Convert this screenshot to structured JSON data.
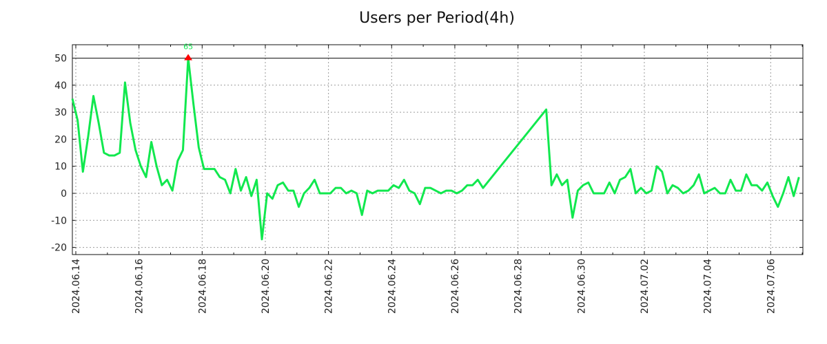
{
  "chart_data": {
    "type": "line",
    "title": "Users per Period(4h)",
    "xlabel": "",
    "ylabel": "",
    "ylim": [
      -22,
      55
    ],
    "yticks": [
      -20,
      -10,
      0,
      10,
      20,
      30,
      40,
      50
    ],
    "xtick_labels": [
      "2024.06.14",
      "2024.06.16",
      "2024.06.18",
      "2024.06.20",
      "2024.06.22",
      "2024.06.24",
      "2024.06.26",
      "2024.06.28",
      "2024.06.30",
      "2024.07.02",
      "2024.07.04",
      "2024.07.06"
    ],
    "period_hours": 4,
    "grid": true,
    "clip_max": 50,
    "peak": {
      "period_index": 22,
      "value": 65,
      "label": "65"
    },
    "series": [
      {
        "name": "Users",
        "color": "#11e84e",
        "segments": [
          {
            "start_index": 0,
            "values": [
              35,
              27,
              8,
              21,
              36,
              26,
              15,
              14,
              14,
              15,
              41,
              26,
              16,
              10,
              6,
              19,
              10,
              3,
              5,
              1,
              12,
              16,
              65,
              33,
              17,
              9,
              9,
              9,
              6,
              5,
              0,
              9,
              1,
              6,
              -1,
              5,
              -17,
              0,
              -2,
              3,
              4,
              1,
              1,
              -5,
              0,
              2,
              5,
              0,
              0,
              0,
              2,
              2,
              0,
              1,
              0,
              -8,
              1,
              0,
              1,
              1,
              1,
              3,
              2,
              5,
              1,
              0,
              -4,
              2,
              2,
              1,
              0,
              1,
              1,
              0,
              1,
              3,
              3,
              5,
              2
            ]
          },
          {
            "start_index": 90,
            "values": [
              31,
              3,
              7,
              3,
              5,
              -9,
              1,
              3,
              4,
              0,
              0,
              0,
              4,
              0,
              5,
              6,
              9,
              0,
              2,
              0,
              1,
              10,
              8,
              0,
              3,
              2,
              0,
              1,
              3,
              7,
              0,
              1,
              2,
              0,
              0,
              5,
              1,
              1,
              7,
              3,
              3,
              1,
              4,
              -1,
              -5,
              0,
              6,
              -1,
              6
            ]
          }
        ]
      }
    ],
    "marker_color": "#ff0000"
  }
}
